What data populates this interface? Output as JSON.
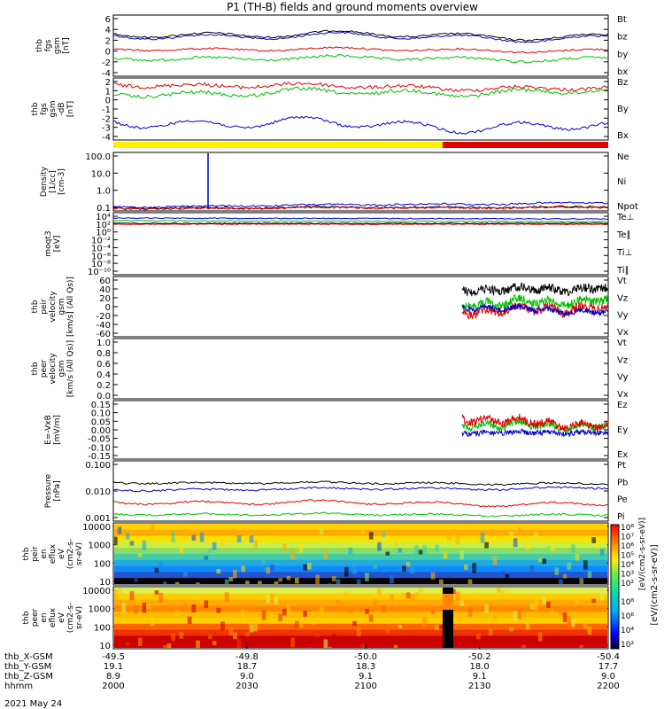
{
  "title": "P1 (TH-B) fields and ground moments overview",
  "colors": {
    "black": "#000000",
    "red": "#e00000",
    "green": "#00c000",
    "blue": "#0000d0",
    "yellow": "#ffee00"
  },
  "panels": [
    {
      "id": "fgs_gsm",
      "ylabel": [
        "thb",
        "fgs",
        "gsm",
        "[nT]"
      ],
      "yticks": [
        "6",
        "4",
        "2",
        "0",
        "-2",
        "-4"
      ],
      "legend": [
        {
          "text": "Bt",
          "color": "#000000"
        },
        {
          "text": "bz",
          "color": "#e00000"
        },
        {
          "text": "by",
          "color": "#00c000"
        },
        {
          "text": "bx",
          "color": "#0000d0"
        }
      ]
    },
    {
      "id": "fgs_dsl",
      "ylabel": [
        "thb",
        "fgs",
        "gsm",
        "-dB",
        "[nT]"
      ],
      "yticks": [
        "2",
        "1",
        "0",
        "-1",
        "-2",
        "-3",
        "-4"
      ],
      "legend": [
        {
          "text": "Bz",
          "color": "#e00000"
        },
        {
          "text": "By",
          "color": "#00c000"
        },
        {
          "text": "Bx",
          "color": "#0000d0"
        }
      ]
    },
    {
      "id": "density",
      "ylabel": [
        "Density",
        "[1/cc]",
        "[cm-3]"
      ],
      "yticks": [
        "100.0",
        "10.0",
        "1.0",
        "0.1"
      ],
      "legend": [
        {
          "text": "Ne",
          "color": "#e00000"
        },
        {
          "text": "Ni",
          "color": "#000000"
        },
        {
          "text": "Npot",
          "color": "#0000d0"
        }
      ]
    },
    {
      "id": "temp",
      "ylabel": [
        "moqt3",
        "[eV]"
      ],
      "yticks": [
        "10⁴",
        "10²",
        "10⁰",
        "10⁻²",
        "10⁻⁴",
        "10⁻⁶",
        "10⁻⁸",
        "10⁻¹⁰"
      ],
      "legend": [
        {
          "text": "Te⊥",
          "color": "#e00000"
        },
        {
          "text": "Te∥",
          "color": "#000000"
        },
        {
          "text": "Ti⊥",
          "color": "#0000d0"
        },
        {
          "text": "Ti∥",
          "color": "#00c000"
        }
      ]
    },
    {
      "id": "peir_vel",
      "ylabel": [
        "thb",
        "peir",
        "velocity",
        "gsm",
        "[km/s] (All Qs)]"
      ],
      "yticks": [
        "60",
        "40",
        "20",
        "0",
        "-20",
        "-40",
        "-60"
      ],
      "legend": [
        {
          "text": "Vt",
          "color": "#000000"
        },
        {
          "text": "Vz",
          "color": "#e00000"
        },
        {
          "text": "Vy",
          "color": "#00c000"
        },
        {
          "text": "Vx",
          "color": "#0000d0"
        }
      ]
    },
    {
      "id": "peer_vel",
      "ylabel": [
        "thb",
        "peer",
        "velocity",
        "gsm",
        "[km/s (All Qs)]"
      ],
      "yticks": [
        "1.0",
        "0.8",
        "0.6",
        "0.4",
        "0.2",
        "0.0"
      ],
      "legend": [
        {
          "text": "Vt",
          "color": "#000000"
        },
        {
          "text": "Vz",
          "color": "#e00000"
        },
        {
          "text": "Vy",
          "color": "#00c000"
        },
        {
          "text": "Vx",
          "color": "#0000d0"
        }
      ]
    },
    {
      "id": "efield",
      "ylabel": [
        "E=-VxB",
        "[mV/m]"
      ],
      "yticks": [
        "0.15",
        "0.10",
        "0.05",
        "0.00",
        "-0.05",
        "-0.10",
        "-0.15"
      ],
      "legend": [
        {
          "text": "Ez",
          "color": "#e00000"
        },
        {
          "text": "Ey",
          "color": "#00c000"
        },
        {
          "text": "Ex",
          "color": "#0000d0"
        }
      ]
    },
    {
      "id": "pressure",
      "ylabel": [
        "Pressure",
        "[nPa]"
      ],
      "yticks": [
        "0.100",
        "0.010",
        "0.001"
      ],
      "legend": [
        {
          "text": "Pt",
          "color": "#000000"
        },
        {
          "text": "Pb",
          "color": "#e00000"
        },
        {
          "text": "Pe",
          "color": "#00c000"
        },
        {
          "text": "Pi",
          "color": "#0000d0"
        }
      ]
    },
    {
      "id": "peir_spec",
      "ylabel": [
        "thb",
        "peir",
        "en",
        "eflux",
        "eV",
        "(cm2-s-",
        "sr-eV)"
      ],
      "yticks": [
        "10000",
        "1000",
        "100",
        "10"
      ],
      "legend": []
    },
    {
      "id": "peer_spec",
      "ylabel": [
        "thb",
        "peer",
        "en",
        "eflux",
        "eV",
        "(cm2-s-",
        "sr-eV)"
      ],
      "yticks": [
        "10000",
        "1000",
        "100",
        "10"
      ],
      "legend": []
    }
  ],
  "colorbar": {
    "ticks_top": [
      "10⁸",
      "10⁷",
      "10⁶",
      "10⁵",
      "10⁴",
      "10³",
      "10²"
    ],
    "ticks_bot": [
      "10⁸",
      "10⁶",
      "10⁴",
      "10²"
    ],
    "label": "[eV/(cm2-s-sr-eV)]",
    "label_top": "[eV/(cm2-s-sr-eV)]"
  },
  "axis": {
    "rows": [
      {
        "label": "thb_X-GSM",
        "values": [
          "-49.5",
          "-49.8",
          "-50.0",
          "-50.2",
          "-50.4"
        ]
      },
      {
        "label": "thb_Y-GSM",
        "values": [
          "19.1",
          "18.7",
          "18.3",
          "18.0",
          "17.7"
        ]
      },
      {
        "label": "thb_Z-GSM",
        "values": [
          "8.9",
          "9.0",
          "9.1",
          "9.1",
          "9.0"
        ]
      },
      {
        "label": "hhmm",
        "values": [
          "2000",
          "2030",
          "2100",
          "2130",
          "2200"
        ]
      }
    ],
    "date": "2021 May 24"
  },
  "chart_data": {
    "type": "line",
    "title": "P1 (TH-B) fields and ground moments overview",
    "x": [
      "2000",
      "2030",
      "2100",
      "2130",
      "2200"
    ],
    "series": [
      {
        "name": "Bt",
        "values": [
          3.5,
          3.2,
          3.8,
          3.0,
          2.5
        ]
      },
      {
        "name": "bz",
        "values": [
          1.0,
          0.9,
          1.1,
          0.8,
          0.6
        ]
      },
      {
        "name": "by",
        "values": [
          -0.8,
          -0.9,
          -0.6,
          -1.0,
          -0.9
        ]
      },
      {
        "name": "bx",
        "values": [
          3.0,
          2.8,
          3.4,
          2.5,
          2.2
        ]
      },
      {
        "name": "Bz",
        "values": [
          1.8,
          1.2,
          1.5,
          1.0,
          1.2
        ]
      },
      {
        "name": "By",
        "values": [
          1.0,
          0.5,
          0.9,
          0.6,
          0.8
        ]
      },
      {
        "name": "Bx",
        "values": [
          -2.5,
          -2.2,
          -1.8,
          -2.6,
          -3.0
        ]
      },
      {
        "name": "Ne",
        "values": [
          0.15,
          0.16,
          0.18,
          0.17,
          0.16
        ]
      },
      {
        "name": "Ni",
        "values": [
          0.13,
          0.15,
          0.16,
          0.17,
          0.16
        ]
      },
      {
        "name": "Npot",
        "values": [
          0.18,
          0.25,
          0.28,
          0.3,
          0.26
        ]
      },
      {
        "name": "Vt",
        "values": [
          null,
          null,
          null,
          30,
          35
        ]
      },
      {
        "name": "Vz",
        "values": [
          null,
          null,
          null,
          10,
          0
        ]
      },
      {
        "name": "Vy",
        "values": [
          null,
          null,
          null,
          15,
          10
        ]
      },
      {
        "name": "Vx",
        "values": [
          null,
          null,
          null,
          -5,
          -20
        ]
      },
      {
        "name": "Ez",
        "values": [
          null,
          null,
          null,
          0.05,
          0.03
        ]
      },
      {
        "name": "Ey",
        "values": [
          null,
          null,
          null,
          0.03,
          0.02
        ]
      },
      {
        "name": "Ex",
        "values": [
          null,
          null,
          null,
          0.0,
          0.0
        ]
      },
      {
        "name": "Pt",
        "values": [
          0.018,
          0.019,
          0.02,
          0.02,
          0.018
        ]
      },
      {
        "name": "Pb",
        "values": [
          0.005,
          0.004,
          0.005,
          0.004,
          0.004
        ]
      },
      {
        "name": "Pe",
        "values": [
          0.003,
          0.002,
          0.002,
          0.002,
          0.002
        ]
      },
      {
        "name": "Pi",
        "values": [
          0.012,
          0.011,
          0.012,
          0.014,
          0.013
        ]
      }
    ]
  }
}
